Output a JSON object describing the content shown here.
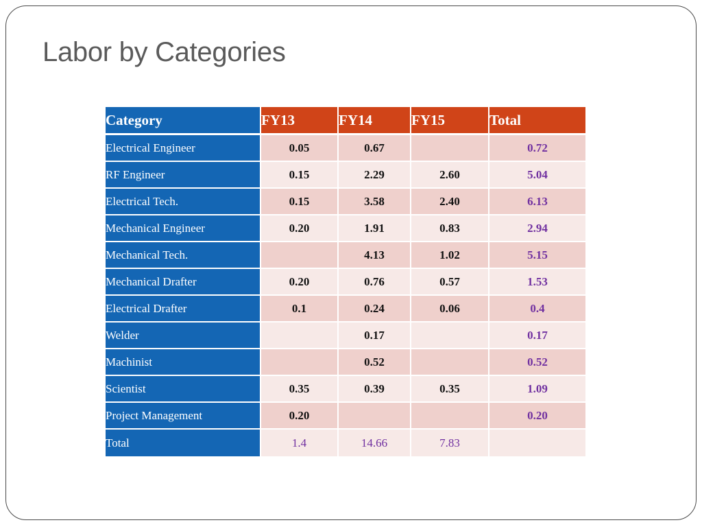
{
  "slide": {
    "title": "Labor by Categories"
  },
  "colors": {
    "category_blue": "#1466b4",
    "header_orange": "#d04418",
    "band_dark": "#efd0cc",
    "band_light": "#f7e9e7",
    "total_purple": "#7030a0"
  },
  "table": {
    "headers": {
      "category": "Category",
      "fy13": "FY13",
      "fy14": "FY14",
      "fy15": "FY15",
      "total": "Total"
    },
    "rows": [
      {
        "category": "Electrical Engineer",
        "fy13": "0.05",
        "fy14": "0.67",
        "fy15": "",
        "total": "0.72"
      },
      {
        "category": "RF Engineer",
        "fy13": "0.15",
        "fy14": "2.29",
        "fy15": "2.60",
        "total": "5.04"
      },
      {
        "category": "Electrical Tech.",
        "fy13": "0.15",
        "fy14": "3.58",
        "fy15": "2.40",
        "total": "6.13"
      },
      {
        "category": "Mechanical Engineer",
        "fy13": "0.20",
        "fy14": "1.91",
        "fy15": "0.83",
        "total": "2.94"
      },
      {
        "category": "Mechanical Tech.",
        "fy13": "",
        "fy14": "4.13",
        "fy15": "1.02",
        "total": "5.15"
      },
      {
        "category": "Mechanical Drafter",
        "fy13": "0.20",
        "fy14": "0.76",
        "fy15": "0.57",
        "total": "1.53"
      },
      {
        "category": "Electrical Drafter",
        "fy13": "0.1",
        "fy14": "0.24",
        "fy15": "0.06",
        "total": "0.4"
      },
      {
        "category": "Welder",
        "fy13": "",
        "fy14": "0.17",
        "fy15": "",
        "total": "0.17"
      },
      {
        "category": "Machinist",
        "fy13": "",
        "fy14": "0.52",
        "fy15": "",
        "total": "0.52"
      },
      {
        "category": "Scientist",
        "fy13": "0.35",
        "fy14": "0.39",
        "fy15": "0.35",
        "total": "1.09"
      },
      {
        "category": "Project Management",
        "fy13": "0.20",
        "fy14": "",
        "fy15": "",
        "total": "0.20"
      }
    ],
    "total_row": {
      "category": "Total",
      "fy13": "1.4",
      "fy14": "14.66",
      "fy15": "7.83",
      "total": ""
    }
  }
}
